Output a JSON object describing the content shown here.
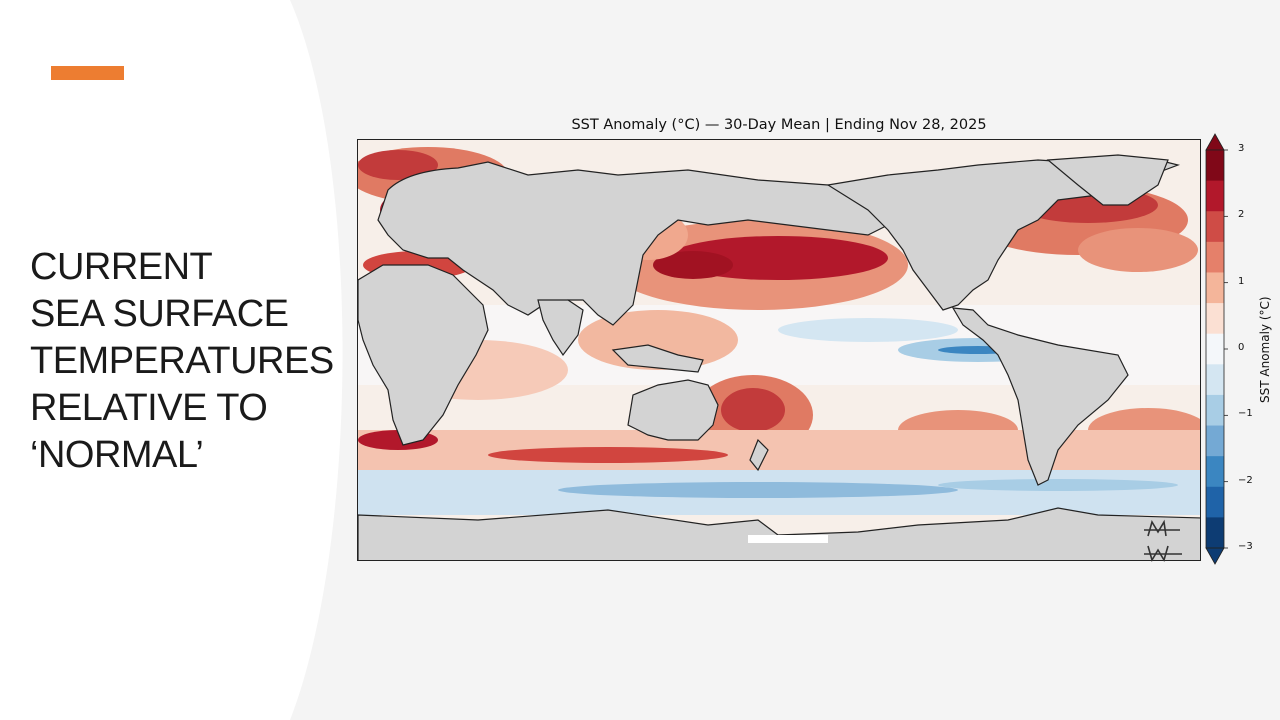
{
  "slide": {
    "title_lines": [
      "CURRENT",
      "SEA SURFACE",
      "TEMPERATURES",
      "RELATIVE TO",
      "‘NORMAL’"
    ],
    "accent_color": "#ed7d31",
    "panel_color": "#ffffff",
    "background_color": "#f4f4f4"
  },
  "figure": {
    "title": "SST Anomaly (°C) — 30-Day Mean | Ending Nov 28, 2025",
    "land_color": "#d3d3d3",
    "watermark_icon": "signature-logo-icon",
    "colorbar": {
      "label": "SST Anomaly (°C)",
      "ticks": [
        "3",
        "2",
        "1",
        "0",
        "−1",
        "−2",
        "−3"
      ],
      "range": [
        -3,
        3
      ],
      "colors": [
        "#0d3c73",
        "#1f63a8",
        "#3b86c1",
        "#74a9d4",
        "#a8cde5",
        "#d4e6f2",
        "#f4f7fa",
        "#fbe0d3",
        "#f4b59a",
        "#e5806a",
        "#cf4c46",
        "#b2182b",
        "#800818"
      ]
    }
  }
}
